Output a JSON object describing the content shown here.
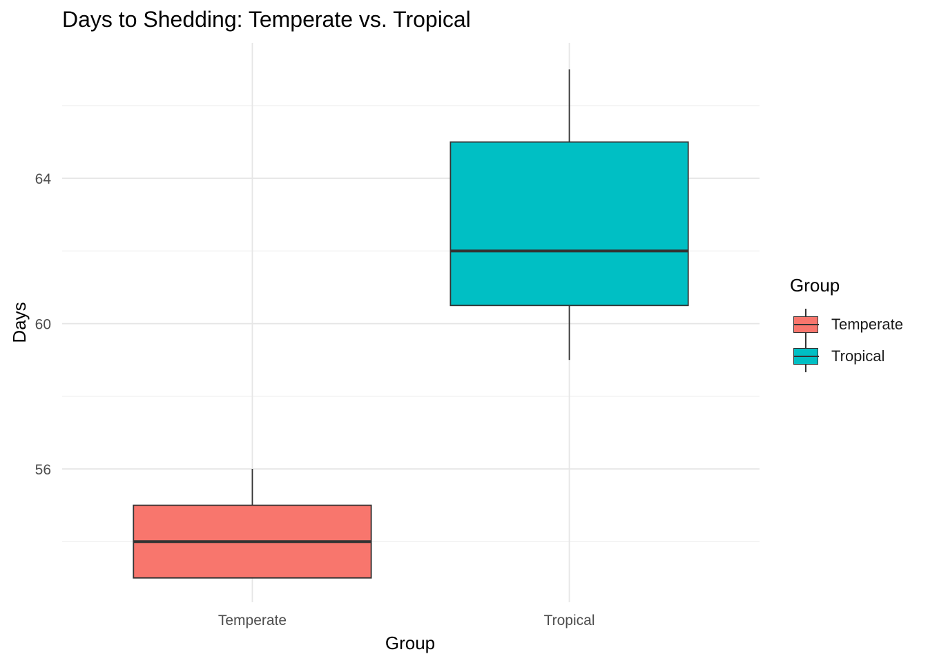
{
  "chart_data": {
    "type": "boxplot",
    "title": "Days to Shedding: Temperate vs. Tropical",
    "xlabel": "Group",
    "ylabel": "Days",
    "categories": [
      "Temperate",
      "Tropical"
    ],
    "boxes": [
      {
        "category": "Temperate",
        "min": 53,
        "q1": 53,
        "median": 54,
        "q3": 55,
        "max": 56,
        "color": "#F8766D"
      },
      {
        "category": "Tropical",
        "min": 59,
        "q1": 60.5,
        "median": 62,
        "q3": 65,
        "max": 67,
        "color": "#00BFC4"
      }
    ],
    "ylim": [
      52.5,
      67.5
    ],
    "yticks": [
      56,
      60,
      64
    ],
    "grid": true,
    "legend": {
      "title": "Group",
      "position": "right",
      "entries": [
        {
          "label": "Temperate",
          "color": "#F8766D"
        },
        {
          "label": "Tropical",
          "color": "#00BFC4"
        }
      ]
    }
  }
}
